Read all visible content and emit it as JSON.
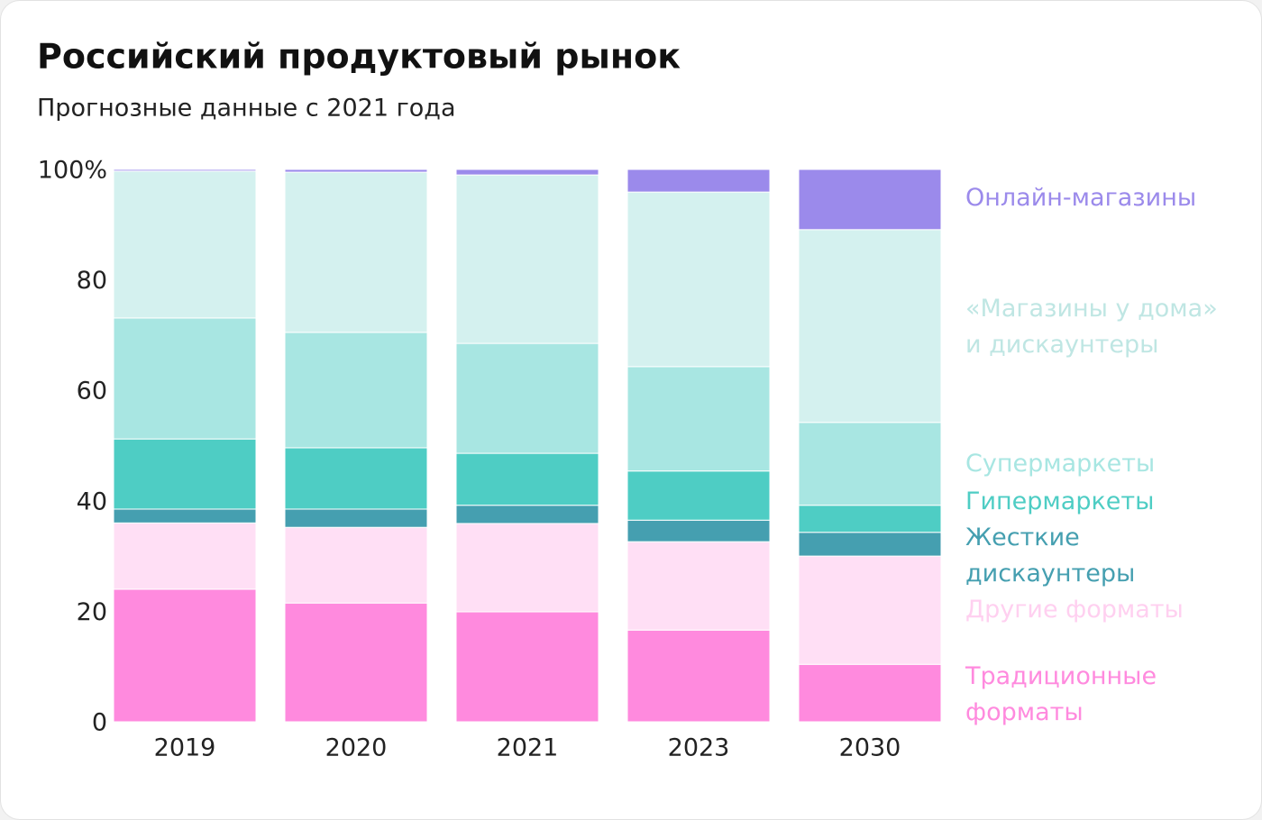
{
  "chart_data": {
    "type": "stacked_bar",
    "title": "Российский продуктовый рынок",
    "subtitle": "Прогнозные данные с 2021 года",
    "categories": [
      "2019",
      "2020",
      "2021",
      "2023",
      "2030"
    ],
    "series": [
      {
        "name": "Традиционные\nформаты",
        "color": "#ff8ade",
        "values": [
          24,
          21.5,
          19.9,
          16.6,
          10.4
        ]
      },
      {
        "name": "Другие форматы",
        "color": "#ffdff5",
        "values": [
          12,
          13.7,
          16,
          16,
          19.6
        ]
      },
      {
        "name": "Жесткие\nдискаунтеры",
        "color": "#459fb0",
        "values": [
          2.5,
          3.3,
          3.3,
          3.9,
          4.3
        ]
      },
      {
        "name": "Гипермаркеты",
        "color": "#4ecdc4",
        "values": [
          12.7,
          11.1,
          9.4,
          8.9,
          4.9
        ]
      },
      {
        "name": "Супермаркеты",
        "color": "#a8e6e2",
        "values": [
          21.9,
          20.9,
          19.9,
          18.9,
          15
        ]
      },
      {
        "name": "«Магазины у дома»\nи дискаунтеры",
        "color": "#d4f1ef",
        "values": [
          26.6,
          29,
          30.5,
          31.6,
          34.9
        ]
      },
      {
        "name": "Онлайн-магазины",
        "color": "#9b8aeb",
        "values": [
          0.3,
          0.5,
          1,
          4.1,
          10.9
        ]
      }
    ],
    "ylim": [
      0,
      100
    ],
    "yticks": [
      0,
      20,
      40,
      60,
      80,
      {
        "value": 100,
        "label": "100%"
      }
    ],
    "stacked": true
  }
}
